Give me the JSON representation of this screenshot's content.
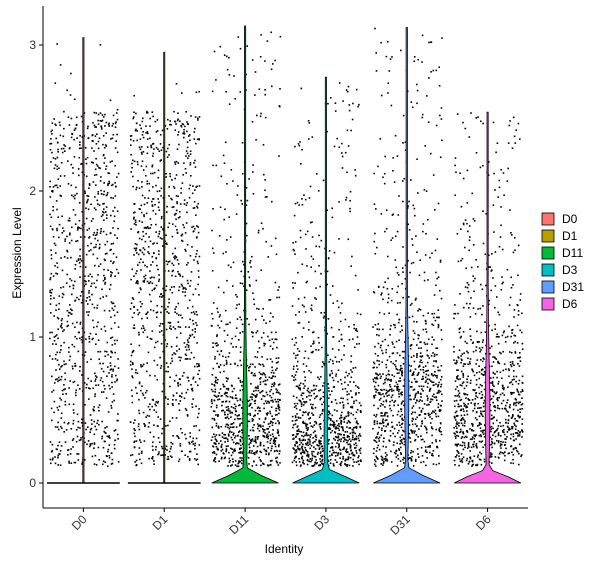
{
  "chart_data": {
    "type": "violin",
    "title": "",
    "xlabel": "Identity",
    "ylabel": "Expression Level",
    "ylim": [
      -0.17,
      3.3
    ],
    "y_ticks": [
      0,
      1,
      2,
      3
    ],
    "y_tick_labels": [
      "0",
      "1",
      "2",
      "3"
    ],
    "grid": false,
    "legend_position": "right",
    "categories": [
      "D0",
      "D1",
      "D11",
      "D3",
      "D31",
      "D6"
    ],
    "series": [
      {
        "name": "D0",
        "color": "#F8766D",
        "max": 3.05,
        "median": 0,
        "zero_fraction": 0.55,
        "mode": 0.0,
        "density_width": 0.0
      },
      {
        "name": "D1",
        "color": "#B79F00",
        "max": 2.95,
        "median": 0,
        "zero_fraction": 0.55,
        "mode": 0.0,
        "density_width": 0.0
      },
      {
        "name": "D11",
        "color": "#00BA38",
        "max": 3.13,
        "median": 0,
        "zero_fraction": 0.45,
        "mode": 0.45,
        "density_width": 0.38
      },
      {
        "name": "D3",
        "color": "#00BFC4",
        "max": 2.78,
        "median": 0,
        "zero_fraction": 0.5,
        "mode": 0.3,
        "density_width": 0.28
      },
      {
        "name": "D31",
        "color": "#619CFF",
        "max": 3.12,
        "median": 0,
        "zero_fraction": 0.45,
        "mode": 0.6,
        "density_width": 0.34
      },
      {
        "name": "D6",
        "color": "#F564E3",
        "max": 2.54,
        "median": 0,
        "zero_fraction": 0.5,
        "mode": 0.5,
        "density_width": 0.4
      }
    ]
  }
}
